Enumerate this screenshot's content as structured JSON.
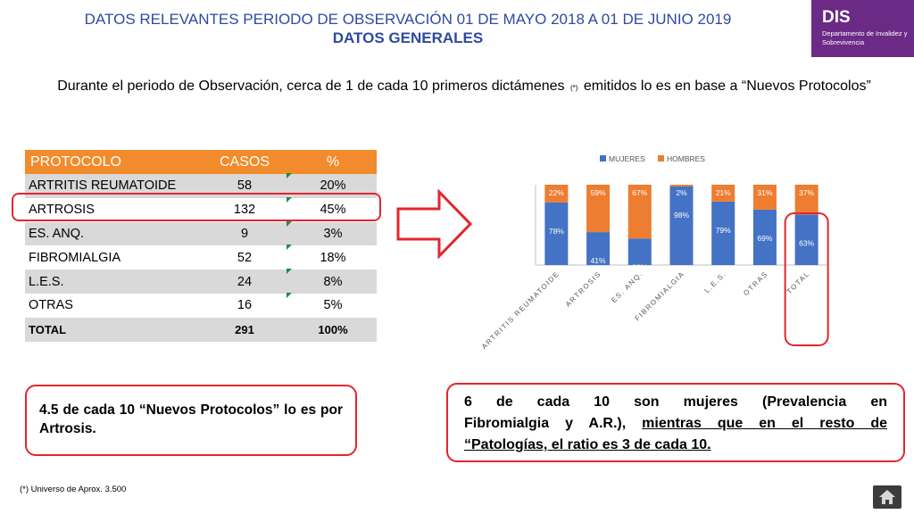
{
  "header": {
    "title": "DATOS RELEVANTES PERIODO DE OBSERVACIÓN 01 DE MAYO 2018 A 01 DE JUNIO 2019",
    "subtitle": "DATOS GENERALES"
  },
  "logo": {
    "abbr": "DIS",
    "name": "Departamento de Invalidez y Sobrevivencia",
    "color": "#6b2a86"
  },
  "intro": {
    "part1": "Durante el periodo de Observación, cerca de 1 de cada 10 primeros dictámenes",
    "marker": "(*)",
    "part2": "emitidos lo es en base a “Nuevos Protocolos”"
  },
  "table": {
    "headers": [
      "PROTOCOLO",
      "CASOS",
      "%"
    ],
    "rows": [
      {
        "name": "ARTRITIS REUMATOIDE",
        "cases": "58",
        "pct": "20%"
      },
      {
        "name": "ARTROSIS",
        "cases": "132",
        "pct": "45%"
      },
      {
        "name": "ES. ANQ.",
        "cases": "9",
        "pct": "3%"
      },
      {
        "name": "FIBROMIALGIA",
        "cases": "52",
        "pct": "18%"
      },
      {
        "name": "L.E.S.",
        "cases": "24",
        "pct": "8%"
      },
      {
        "name": "OTRAS",
        "cases": "16",
        "pct": "5%"
      }
    ],
    "total": {
      "name": "TOTAL",
      "cases": "291",
      "pct": "100%"
    },
    "header_color": "#f28b2c"
  },
  "chart_data": {
    "type": "bar",
    "stacked": true,
    "percent": true,
    "categories": [
      "ARTRITIS REUMATOIDE",
      "ARTROSIS",
      "ES. ANQ.",
      "FIBROMIALGIA",
      "L.E.S.",
      "OTRAS",
      "TOTAL"
    ],
    "series": [
      {
        "name": "MUJERES",
        "values": [
          78,
          41,
          33,
          98,
          79,
          69,
          63
        ],
        "color": "#4472c4"
      },
      {
        "name": "HOMBRES",
        "values": [
          22,
          59,
          67,
          2,
          21,
          31,
          37
        ],
        "color": "#ed7d31"
      }
    ],
    "legend": "top",
    "ylim": [
      0,
      100
    ],
    "grid": false
  },
  "callouts": {
    "left": "4.5 de cada 10 “Nuevos Protocolos” lo es por Artrosis.",
    "right_line1": "6 de cada 10 son mujeres (Prevalencia en",
    "right_line2a": "Fibromialgia y A.R.),",
    "right_line2b": "mientras que en el resto de",
    "right_line3": "“Patologías, el ratio es 3 de cada 10."
  },
  "footnote": "(*) Universo de Aprox. 3.500",
  "home_icon": "home-icon"
}
